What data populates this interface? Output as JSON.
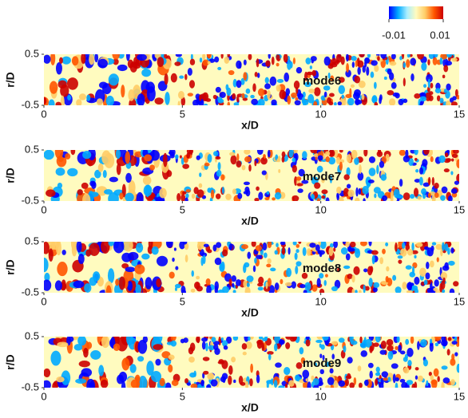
{
  "chart_data": [
    {
      "type": "contour",
      "annotation": "mode6",
      "xlabel": "x/D",
      "ylabel": "r/D",
      "xlim": [
        0,
        15
      ],
      "xticks": [
        0,
        5,
        10,
        15
      ],
      "ylim": [
        -0.5,
        0.5
      ],
      "yticks": [
        0.5,
        -0.5
      ],
      "clim": [
        -0.01,
        0.01
      ],
      "cticks": [
        -0.01,
        0.01
      ],
      "colormap": [
        "#0000ff",
        "#00aaff",
        "#aaeeff",
        "#fffbbf",
        "#ffcc66",
        "#ff5500",
        "#cc0000"
      ]
    },
    {
      "type": "contour",
      "annotation": "mode7",
      "xlabel": "x/D",
      "ylabel": "r/D",
      "xlim": [
        0,
        15
      ],
      "xticks": [
        0,
        5,
        10,
        15
      ],
      "ylim": [
        -0.5,
        0.5
      ],
      "yticks": [
        0.5,
        -0.5
      ]
    },
    {
      "type": "contour",
      "annotation": "mode8",
      "xlabel": "x/D",
      "ylabel": "r/D",
      "xlim": [
        0,
        15
      ],
      "xticks": [
        0,
        5,
        10,
        15
      ],
      "ylim": [
        -0.5,
        0.5
      ],
      "yticks": [
        0.5,
        -0.5
      ]
    },
    {
      "type": "contour",
      "annotation": "mode9",
      "xlabel": "x/D",
      "ylabel": "r/D",
      "xlim": [
        0,
        15
      ],
      "xticks": [
        0,
        5,
        10,
        15
      ],
      "ylim": [
        -0.5,
        0.5
      ],
      "yticks": [
        0.5,
        -0.5
      ]
    }
  ]
}
